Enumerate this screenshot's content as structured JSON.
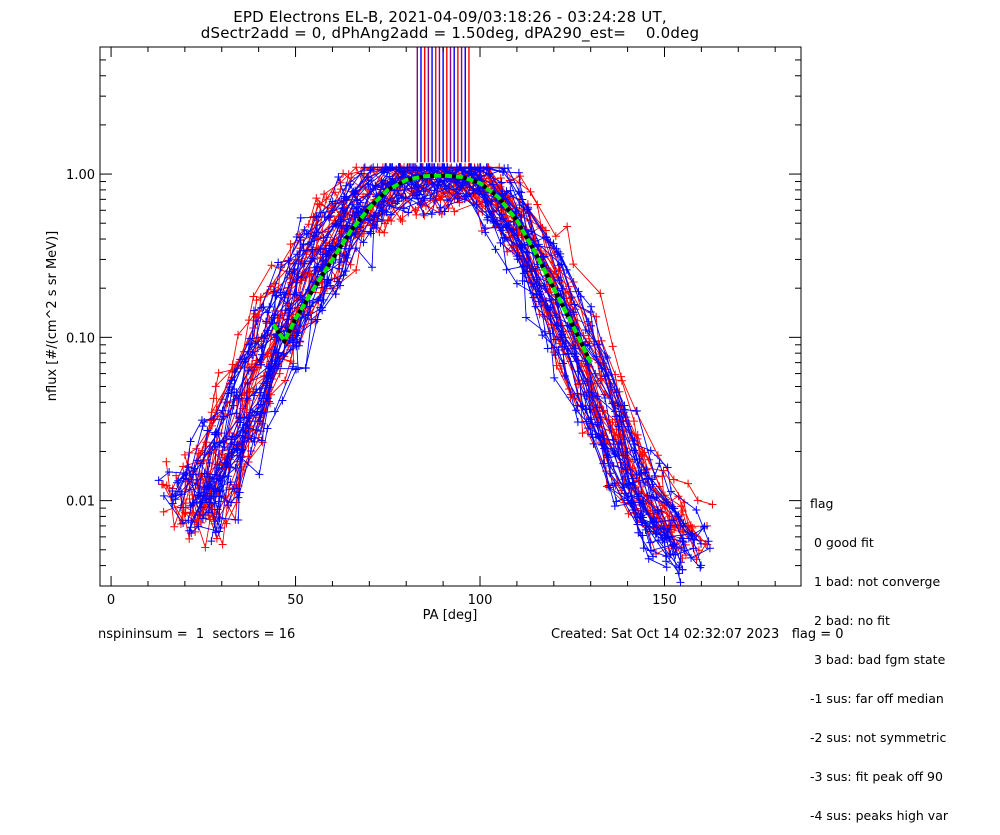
{
  "title": {
    "line1": "EPD Electrons EL-B, 2021-04-09/03:18:26 - 03:24:28 UT,",
    "line2": "dSectr2add = 0, dPhAng2add = 1.50deg, dPA290_est=    0.0deg"
  },
  "legend": {
    "title": "flag",
    "items": [
      " 0 good fit",
      " 1 bad: not converge",
      " 2 bad: no fit",
      " 3 bad: bad fgm state",
      "-1 sus: far off median",
      "-2 sus: not symmetric",
      "-3 sus: fit peak off 90",
      "-4 sus: peaks high var"
    ]
  },
  "footer": {
    "left": "nspininsum =  1  sectors = 16",
    "right": "Created: Sat Oct 14 02:32:07 2023   flag = 0"
  },
  "colors": {
    "series_a": "#ff0000",
    "series_b": "#0000ff",
    "fit": "#00ee00",
    "marker": "#8b008b"
  },
  "chart_data": {
    "type": "scatter",
    "xlabel": "PA [deg]",
    "ylabel": "nflux [#/(cm^2 s sr MeV)]",
    "xlim": [
      -3,
      187
    ],
    "ylim": [
      0.003,
      6.0
    ],
    "yscale": "log",
    "x_ticks": [
      0,
      50,
      100,
      150
    ],
    "y_ticks": [
      {
        "value": 0.01,
        "label": "0.01"
      },
      {
        "value": 0.1,
        "label": "0.10"
      },
      {
        "value": 1.0,
        "label": "1.00"
      }
    ],
    "fit_curve": {
      "x": [
        44,
        47,
        50,
        55,
        60,
        65,
        70,
        75,
        80,
        85,
        90,
        95,
        100,
        105,
        110,
        115,
        120,
        125,
        130
      ],
      "y": [
        0.12,
        0.095,
        0.13,
        0.2,
        0.3,
        0.45,
        0.62,
        0.8,
        0.92,
        0.97,
        0.98,
        0.96,
        0.88,
        0.72,
        0.52,
        0.33,
        0.2,
        0.12,
        0.07
      ]
    },
    "vertical_markers_x": [
      83,
      84,
      85,
      86,
      87,
      88,
      89,
      90,
      91,
      92,
      93,
      94,
      95,
      96,
      97
    ],
    "series": [
      {
        "color_key": "series_a",
        "x": [
          22,
          25,
          28,
          31,
          34,
          37,
          40,
          44,
          47,
          50,
          54,
          57,
          60,
          64,
          68,
          72,
          76,
          80,
          85,
          90,
          95,
          100,
          104,
          108,
          112,
          116,
          120,
          124,
          128,
          132,
          136,
          140,
          144,
          148,
          152,
          156
        ],
        "y": [
          0.012,
          0.008,
          0.015,
          0.02,
          0.03,
          0.045,
          0.07,
          0.1,
          0.14,
          0.19,
          0.26,
          0.34,
          0.43,
          0.55,
          0.67,
          0.78,
          0.87,
          0.94,
          0.97,
          0.98,
          0.96,
          0.9,
          0.78,
          0.62,
          0.46,
          0.32,
          0.21,
          0.13,
          0.08,
          0.05,
          0.03,
          0.02,
          0.013,
          0.009,
          0.007,
          0.006
        ]
      },
      {
        "color_key": "series_b",
        "x": [
          21,
          24,
          27,
          30,
          33,
          36,
          39,
          43,
          46,
          49,
          53,
          56,
          59,
          63,
          67,
          71,
          75,
          79,
          84,
          89,
          94,
          99,
          103,
          107,
          111,
          115,
          119,
          123,
          127,
          131,
          135,
          139,
          143,
          147,
          151,
          155
        ],
        "y": [
          0.009,
          0.011,
          0.01,
          0.018,
          0.022,
          0.035,
          0.05,
          0.08,
          0.1,
          0.15,
          0.2,
          0.28,
          0.36,
          0.48,
          0.6,
          0.72,
          0.83,
          0.92,
          0.96,
          0.97,
          0.95,
          0.88,
          0.75,
          0.58,
          0.42,
          0.28,
          0.18,
          0.11,
          0.07,
          0.04,
          0.025,
          0.016,
          0.011,
          0.008,
          0.006,
          0.005
        ]
      }
    ]
  }
}
